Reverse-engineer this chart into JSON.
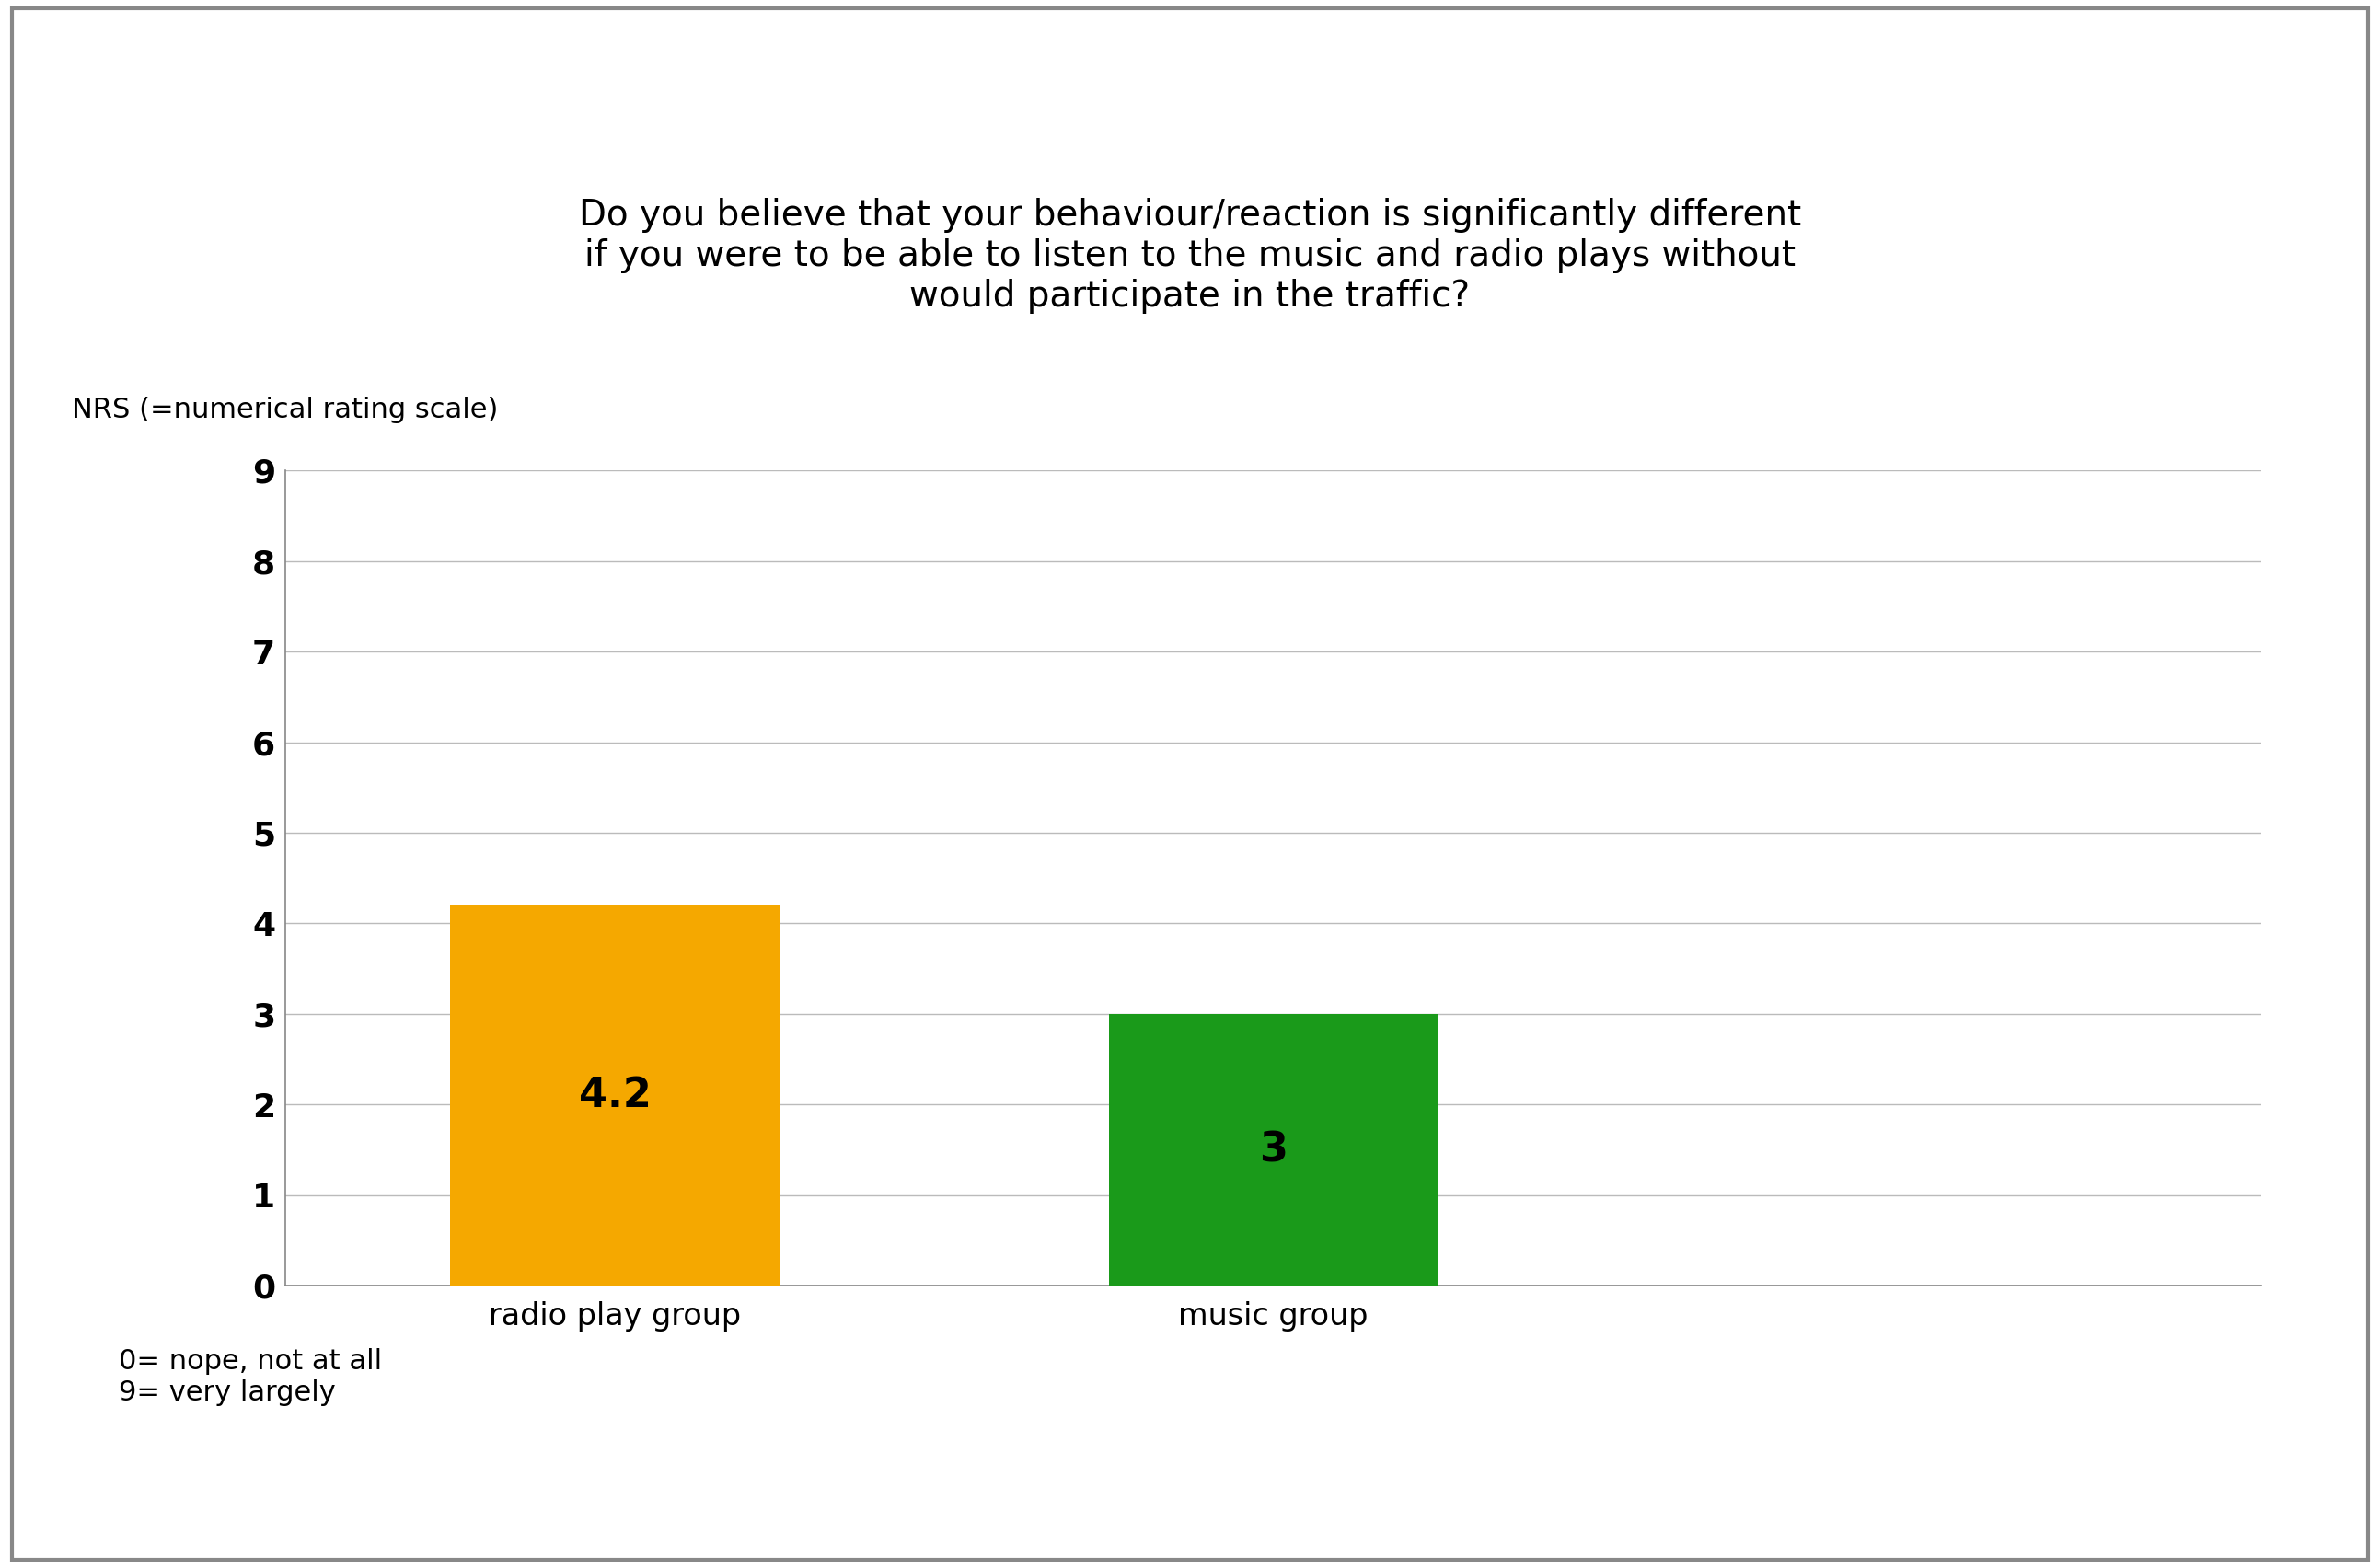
{
  "title": "Do you believe that your behaviour/reaction is significantly different\nif you were to be able to listen to the music and radio plays without\nwould participate in the traffic?",
  "ylabel": "NRS (=numerical rating scale)",
  "categories": [
    "radio play group",
    "music group"
  ],
  "values": [
    4.2,
    3
  ],
  "bar_colors": [
    "#F5A800",
    "#1A9A1A"
  ],
  "bar_labels": [
    "4.2",
    "3"
  ],
  "ylim": [
    0,
    9
  ],
  "yticks": [
    0,
    1,
    2,
    3,
    4,
    5,
    6,
    7,
    8,
    9
  ],
  "footnote_line1": "0= nope, not at all",
  "footnote_line2": "9= very largely",
  "title_fontsize": 28,
  "ylabel_fontsize": 22,
  "tick_fontsize": 26,
  "bar_label_fontsize": 32,
  "footnote_fontsize": 22,
  "xtick_fontsize": 24,
  "background_color": "#ffffff",
  "border_color": "#888888",
  "grid_color": "#bbbbbb",
  "spine_color": "#888888"
}
